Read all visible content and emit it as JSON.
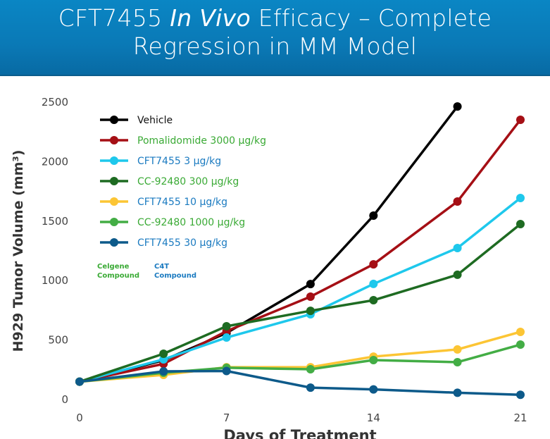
{
  "header": {
    "title_part1": "CFT7455 ",
    "title_italic": "In Vivo",
    "title_part2": " Efficacy – Complete",
    "title_line2": "Regression in MM Model"
  },
  "chart_data": {
    "type": "line",
    "title": "CFT7455 In Vivo Efficacy – Complete Regression in MM Model",
    "xlabel": "Days of Treatment",
    "ylabel": "H929 Tumor Volume (mm³)",
    "xlim": [
      0,
      21
    ],
    "ylim": [
      0,
      2500
    ],
    "xticks": [
      0,
      7,
      14,
      21
    ],
    "yticks": [
      0,
      500,
      1000,
      1500,
      2000,
      2500
    ],
    "legend_position": "top-left",
    "grid": false,
    "series": [
      {
        "name": "Vehicle",
        "color": "#000000",
        "label_color": "#111111",
        "x": [
          0,
          4,
          7,
          11,
          14,
          18
        ],
        "y": [
          150,
          330,
          560,
          971,
          1546,
          2464
        ]
      },
      {
        "name": "Pomalidomide 3000 µg/kg",
        "color": "#a50f15",
        "label_color": "#3aaa35",
        "x": [
          0,
          4,
          7,
          11,
          14,
          18,
          21
        ],
        "y": [
          150,
          300,
          575,
          865,
          1137,
          1665,
          2352
        ]
      },
      {
        "name": "CFT7455 3 µg/kg",
        "color": "#1ec8ec",
        "label_color": "#1a7ac0",
        "x": [
          0,
          4,
          7,
          11,
          14,
          18,
          21
        ],
        "y": [
          150,
          338,
          521,
          717,
          972,
          1274,
          1694
        ]
      },
      {
        "name": "CC-92480 300 µg/kg",
        "color": "#1e6b22",
        "label_color": "#3aaa35",
        "x": [
          0,
          4,
          7,
          11,
          14,
          18,
          21
        ],
        "y": [
          150,
          385,
          616,
          746,
          835,
          1049,
          1475
        ]
      },
      {
        "name": "CFT7455 10 µg/kg",
        "color": "#fcc534",
        "label_color": "#1a7ac0",
        "x": [
          0,
          4,
          7,
          11,
          14,
          18,
          21
        ],
        "y": [
          150,
          207,
          272,
          272,
          361,
          421,
          569
        ]
      },
      {
        "name": "CC-92480 1000 µg/kg",
        "color": "#43ad45",
        "label_color": "#3aaa35",
        "x": [
          0,
          4,
          7,
          11,
          14,
          18,
          21
        ],
        "y": [
          150,
          225,
          267,
          255,
          332,
          314,
          462
        ]
      },
      {
        "name": "CFT7455 30 µg/kg",
        "color": "#0d5a8a",
        "label_color": "#1a7ac0",
        "x": [
          0,
          4,
          7,
          11,
          14,
          18,
          21
        ],
        "y": [
          150,
          237,
          240,
          100,
          85,
          57,
          40
        ]
      }
    ],
    "annotations": [
      {
        "line1": "Celgene",
        "line2": "Compound",
        "color": "#3aaa35"
      },
      {
        "line1": "C4T",
        "line2": "Compound",
        "color": "#1a7ac0"
      }
    ]
  }
}
